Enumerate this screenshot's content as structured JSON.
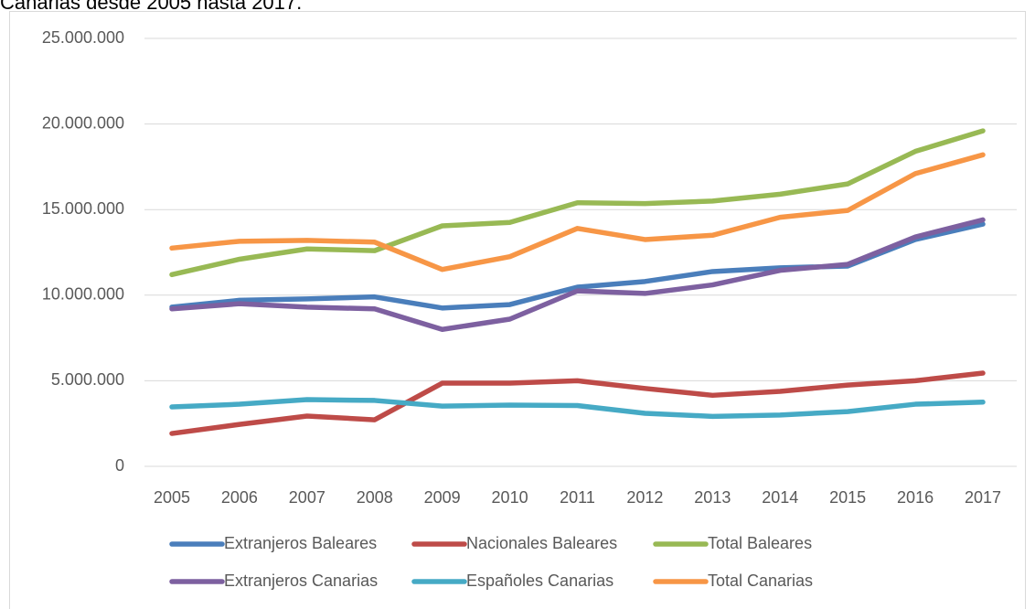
{
  "caption": "Canarias desde 2005 hasta 2017.",
  "chart_data": {
    "type": "line",
    "categories": [
      "2005",
      "2006",
      "2007",
      "2008",
      "2009",
      "2010",
      "2011",
      "2012",
      "2013",
      "2014",
      "2015",
      "2016",
      "2017"
    ],
    "series": [
      {
        "name": "Extranjeros Baleares",
        "color": "#4a7ebb",
        "values": [
          9300000,
          9700000,
          9780000,
          9900000,
          9250000,
          9450000,
          10470000,
          10800000,
          11380000,
          11600000,
          11700000,
          13250000,
          14150000
        ]
      },
      {
        "name": "Nacionales Baleares",
        "color": "#be4b48",
        "values": [
          1920000,
          2450000,
          2940000,
          2720000,
          4860000,
          4860000,
          5000000,
          4550000,
          4150000,
          4380000,
          4750000,
          5000000,
          5450000
        ]
      },
      {
        "name": "Total Baleares",
        "color": "#98b954",
        "values": [
          11200000,
          12100000,
          12700000,
          12600000,
          14050000,
          14250000,
          15400000,
          15350000,
          15500000,
          15900000,
          16500000,
          18400000,
          19600000
        ]
      },
      {
        "name": "Extranjeros Canarias",
        "color": "#7d60a0",
        "values": [
          9200000,
          9500000,
          9300000,
          9200000,
          8000000,
          8600000,
          10250000,
          10100000,
          10600000,
          11450000,
          11800000,
          13400000,
          14400000
        ]
      },
      {
        "name": "Españoles Canarias",
        "color": "#46aac5",
        "values": [
          3470000,
          3630000,
          3900000,
          3850000,
          3520000,
          3580000,
          3550000,
          3100000,
          2920000,
          3000000,
          3200000,
          3630000,
          3750000
        ]
      },
      {
        "name": "Total Canarias",
        "color": "#f79646",
        "values": [
          12750000,
          13150000,
          13200000,
          13100000,
          11500000,
          12250000,
          13900000,
          13250000,
          13500000,
          14550000,
          14950000,
          17100000,
          18200000
        ]
      }
    ],
    "ylim": [
      0,
      25000000
    ],
    "yticks": [
      0,
      {
        "value": 5000000,
        "label": "5.000.000"
      },
      {
        "value": 10000000,
        "label": "10.000.000"
      },
      {
        "value": 15000000,
        "label": "15.000.000"
      },
      {
        "value": 20000000,
        "label": "20.000.000"
      },
      {
        "value": 25000000,
        "label": "25.000.000"
      }
    ],
    "grid": true,
    "legend": "bottom"
  }
}
